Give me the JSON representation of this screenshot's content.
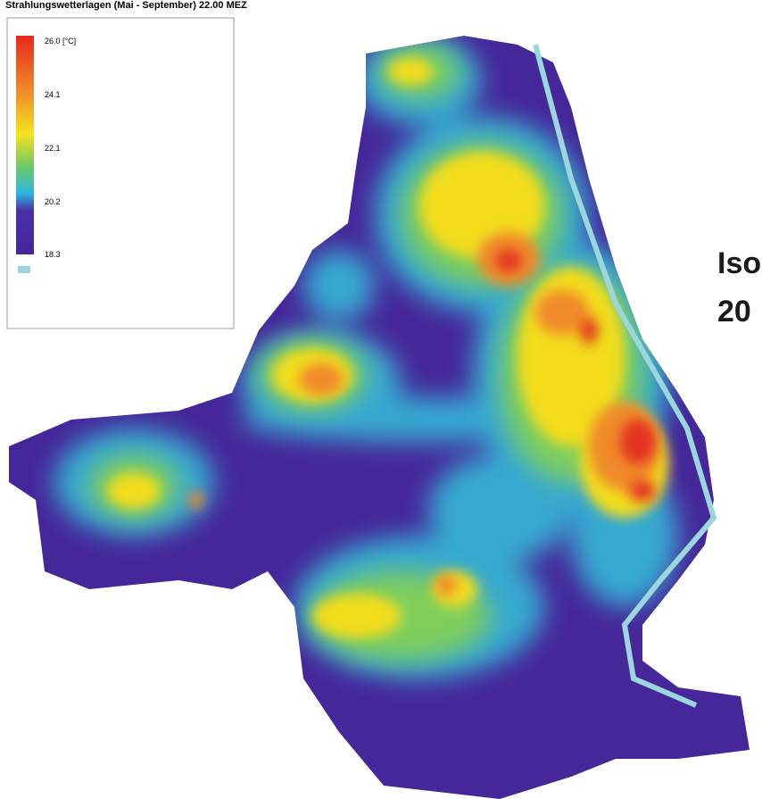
{
  "header": {
    "title": "Strahlungswetterlagen (Mai - September) 22.00 MEZ"
  },
  "legend": {
    "labels": [
      "26.0 [°C]",
      "24.1",
      "22.1",
      "20.2",
      "18.3"
    ]
  },
  "side_text": [
    "Iso",
    "20"
  ]
}
